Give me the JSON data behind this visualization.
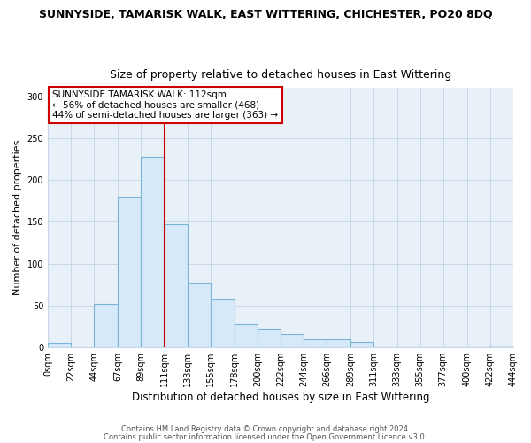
{
  "title": "SUNNYSIDE, TAMARISK WALK, EAST WITTERING, CHICHESTER, PO20 8DQ",
  "subtitle": "Size of property relative to detached houses in East Wittering",
  "xlabel": "Distribution of detached houses by size in East Wittering",
  "ylabel": "Number of detached properties",
  "bar_color": "#d6e9f8",
  "bar_edge_color": "#7ab5d8",
  "bin_edges": [
    0,
    22,
    44,
    67,
    89,
    111,
    133,
    155,
    178,
    200,
    222,
    244,
    266,
    289,
    311,
    333,
    355,
    377,
    400,
    422,
    444
  ],
  "bar_heights": [
    5,
    0,
    52,
    180,
    228,
    147,
    77,
    57,
    28,
    22,
    16,
    10,
    10,
    6,
    0,
    0,
    0,
    0,
    0,
    2
  ],
  "tick_labels": [
    "0sqm",
    "22sqm",
    "44sqm",
    "67sqm",
    "89sqm",
    "111sqm",
    "133sqm",
    "155sqm",
    "178sqm",
    "200sqm",
    "222sqm",
    "244sqm",
    "266sqm",
    "289sqm",
    "311sqm",
    "333sqm",
    "355sqm",
    "377sqm",
    "400sqm",
    "422sqm",
    "444sqm"
  ],
  "vline_x": 111,
  "vline_color": "#cc0000",
  "annotation_line1": "SUNNYSIDE TAMARISK WALK: 112sqm",
  "annotation_line2": "← 56% of detached houses are smaller (468)",
  "annotation_line3": "44% of semi-detached houses are larger (363) →",
  "annotation_box_color": "#ffffff",
  "annotation_box_edge": "#cc0000",
  "ylim": [
    0,
    310
  ],
  "yticks": [
    0,
    50,
    100,
    150,
    200,
    250,
    300
  ],
  "footer1": "Contains HM Land Registry data © Crown copyright and database right 2024.",
  "footer2": "Contains public sector information licensed under the Open Government Licence v3.0.",
  "bg_color": "#ffffff",
  "plot_bg_color": "#e8f0f8",
  "grid_color": "#c8d8e8",
  "title_fontsize": 9,
  "subtitle_fontsize": 9,
  "xlabel_fontsize": 8.5,
  "ylabel_fontsize": 8,
  "tick_fontsize": 7,
  "footer_fontsize": 6
}
